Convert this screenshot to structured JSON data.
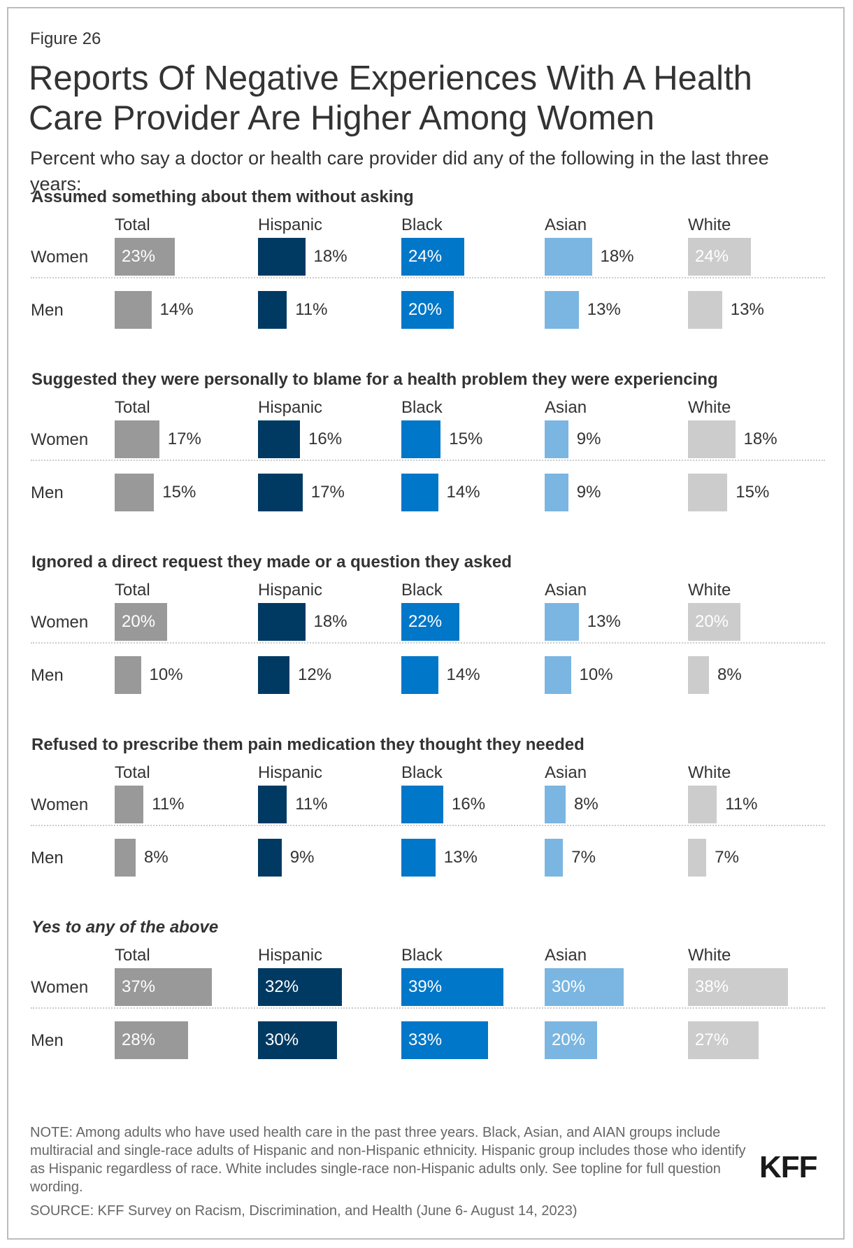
{
  "figure_label": "Figure 26",
  "title": "Reports Of Negative Experiences With A Health Care Provider Are Higher Among Women",
  "subtitle": "Percent who say a doctor or health care provider did any of the following in the last three years:",
  "colors": {
    "Total": "#999999",
    "Hispanic": "#003a63",
    "Black": "#0077c8",
    "Asian": "#7ab6e1",
    "White": "#cccccc"
  },
  "chart_data": {
    "type": "bar",
    "orientation": "horizontal",
    "groups": [
      "Total",
      "Hispanic",
      "Black",
      "Asian",
      "White"
    ],
    "rows": [
      "Women",
      "Men"
    ],
    "value_suffix": "%",
    "panels": [
      {
        "title": "Assumed something about them without asking",
        "italic": false,
        "series": [
          {
            "name": "Women",
            "values": [
              23,
              18,
              24,
              18,
              24
            ]
          },
          {
            "name": "Men",
            "values": [
              14,
              11,
              20,
              13,
              13
            ]
          }
        ]
      },
      {
        "title": "Suggested they were personally to blame for a health problem they were experiencing",
        "italic": false,
        "series": [
          {
            "name": "Women",
            "values": [
              17,
              16,
              15,
              9,
              18
            ]
          },
          {
            "name": "Men",
            "values": [
              15,
              17,
              14,
              9,
              15
            ]
          }
        ]
      },
      {
        "title": "Ignored a direct request they made or a question they asked",
        "italic": false,
        "series": [
          {
            "name": "Women",
            "values": [
              20,
              18,
              22,
              13,
              20
            ]
          },
          {
            "name": "Men",
            "values": [
              10,
              12,
              14,
              10,
              8
            ]
          }
        ]
      },
      {
        "title": "Refused to prescribe them pain medication they thought they needed",
        "italic": false,
        "series": [
          {
            "name": "Women",
            "values": [
              11,
              11,
              16,
              8,
              11
            ]
          },
          {
            "name": "Men",
            "values": [
              8,
              9,
              13,
              7,
              7
            ]
          }
        ]
      },
      {
        "title": "Yes to any of the above",
        "italic": true,
        "series": [
          {
            "name": "Women",
            "values": [
              37,
              32,
              39,
              30,
              38
            ]
          },
          {
            "name": "Men",
            "values": [
              28,
              30,
              33,
              20,
              27
            ]
          }
        ]
      }
    ]
  },
  "note": "NOTE: Among adults who have used health care in the past three years. Black, Asian, and AIAN groups include multiracial and single-race adults of Hispanic and non-Hispanic ethnicity. Hispanic group includes those who identify as Hispanic regardless of race. White includes single-race non-Hispanic adults only. See topline for full question wording.",
  "source": "SOURCE: KFF Survey on Racism, Discrimination, and Health (June 6- August 14, 2023)",
  "logo_text": "KFF"
}
